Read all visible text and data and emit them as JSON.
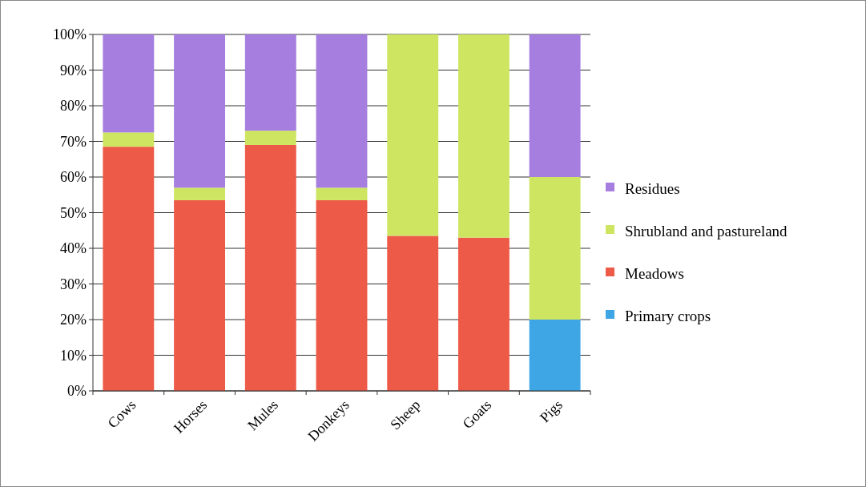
{
  "chart_data": {
    "type": "bar",
    "stacked": true,
    "categories": [
      "Cows",
      "Horses",
      "Mules",
      "Donkeys",
      "Sheep",
      "Goats",
      "Pigs"
    ],
    "series": [
      {
        "name": "Primary crops",
        "color": "#3fa6e6",
        "values": [
          0,
          0,
          0,
          0,
          0,
          0,
          20
        ]
      },
      {
        "name": "Meadows",
        "color": "#ee5a48",
        "values": [
          68.5,
          53.5,
          69,
          53.5,
          43.5,
          43,
          0
        ]
      },
      {
        "name": "Shrubland and pastureland",
        "color": "#cde561",
        "values": [
          4,
          3.5,
          4,
          3.5,
          56.5,
          57,
          40
        ]
      },
      {
        "name": "Residues",
        "color": "#a57ee0",
        "values": [
          27.5,
          43,
          27,
          43,
          0,
          0,
          40
        ]
      }
    ],
    "ylim": [
      0,
      100
    ],
    "yticks": [
      {
        "value": 0,
        "label": "0%"
      },
      {
        "value": 10,
        "label": "10%"
      },
      {
        "value": 20,
        "label": "20%"
      },
      {
        "value": 30,
        "label": "30%"
      },
      {
        "value": 40,
        "label": "40%"
      },
      {
        "value": 50,
        "label": "50%"
      },
      {
        "value": 60,
        "label": "60%"
      },
      {
        "value": 70,
        "label": "70%"
      },
      {
        "value": 80,
        "label": "80%"
      },
      {
        "value": 90,
        "label": "90%"
      },
      {
        "value": 100,
        "label": "100%"
      }
    ],
    "grid": "y",
    "legend": "right"
  }
}
